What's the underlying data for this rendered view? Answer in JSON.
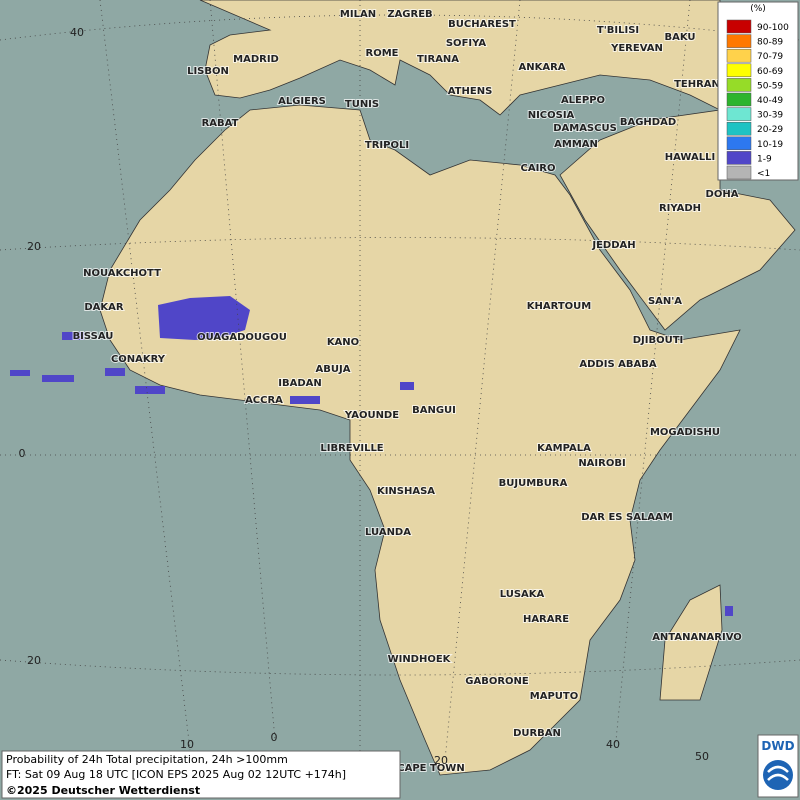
{
  "cities": [
    "MILAN",
    "ZAGREB",
    "BUCHAREST",
    "T'BILISI",
    "BAKU",
    "LISBON",
    "MADRID",
    "ROME",
    "SOFIYA",
    "TIRANA",
    "ANKARA",
    "YEREVAN",
    "TEHRAN",
    "ALGIERS",
    "TUNIS",
    "ATHENS",
    "ALEPPO",
    "RABAT",
    "NICOSIA",
    "BAGHDAD",
    "DAMASCUS",
    "TRIPOLI",
    "AMMAN",
    "HAWALLI",
    "CAIRO",
    "DOHA",
    "RIYADH",
    "NOUAKCHOTT",
    "JEDDAH",
    "DAKAR",
    "KHARTOUM",
    "SAN'A",
    "BISSAU",
    "OUAGADOUGOU",
    "KANO",
    "DJIBOUTI",
    "CONAKRY",
    "ABUJA",
    "ADDIS ABABA",
    "IBADAN",
    "ACCRA",
    "YAOUNDE",
    "BANGUI",
    "MOGADISHU",
    "LIBREVILLE",
    "KAMPALA",
    "NAIROBI",
    "BUJUMBURA",
    "KINSHASA",
    "DAR ES SALAAM",
    "LUANDA",
    "LUSAKA",
    "HARARE",
    "ANTANANARIVO",
    "WINDHOEK",
    "GABORONE",
    "MAPUTO",
    "DURBAN",
    "CAPE TOWN"
  ],
  "latitude_labels": [
    "40",
    "20",
    "0",
    "20"
  ],
  "longitude_labels": [
    "10",
    "0",
    "20",
    "40",
    "50"
  ],
  "legend": {
    "unit": "(%)",
    "items": [
      {
        "label": "90-100",
        "color": "#c80000"
      },
      {
        "label": "80-89",
        "color": "#ff7800"
      },
      {
        "label": "70-79",
        "color": "#ffd24b"
      },
      {
        "label": "60-69",
        "color": "#ffff00"
      },
      {
        "label": "50-59",
        "color": "#96dc28"
      },
      {
        "label": "40-49",
        "color": "#2db42d"
      },
      {
        "label": "30-39",
        "color": "#6ee6d2"
      },
      {
        "label": "20-29",
        "color": "#1ec3c3"
      },
      {
        "label": "10-19",
        "color": "#2d78f0"
      },
      {
        "label": "1-9",
        "color": "#5046c8"
      },
      {
        "label": "<1",
        "color": "#b4b4b4"
      }
    ]
  },
  "caption": {
    "line1": "Probability of 24h Total precipitation, 24h >100mm",
    "line2": "FT: Sat 09 Aug 18 UTC [ICON EPS 2025 Aug 02 12UTC +174h]",
    "copyright": "©2025 Deutscher Wetterdienst"
  },
  "logo": "DWD"
}
